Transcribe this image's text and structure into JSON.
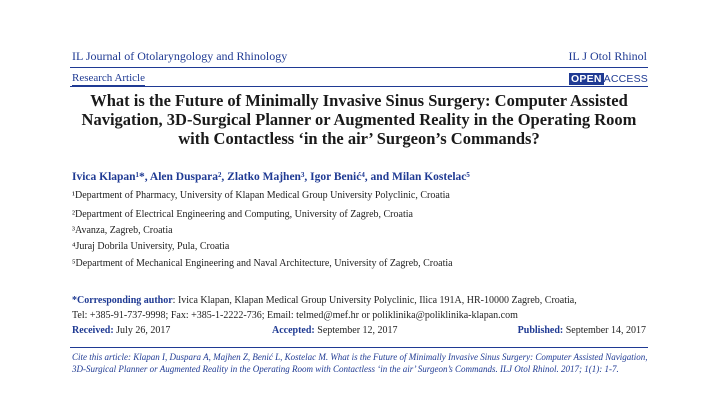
{
  "header": {
    "journal": "IL Journal of Otolaryngology and Rhinology",
    "abbreviation": "IL J Otol Rhinol",
    "research_type": "Research Article",
    "open": "OPEN",
    "access": "ACCESS"
  },
  "title": "What is the Future of Minimally Invasive Sinus Surgery: Computer Assisted Navigation, 3D-Surgical Planner or Augmented Reality in the Operating Room with Contactless ‘in the air’ Surgeon’s Commands?",
  "authors": "Ivica Klapan¹*, Alen Duspara², Zlatko Majhen³, Igor Benić⁴, and Milan Kostelac⁵",
  "affiliations": [
    "¹Department of Pharmacy, University of  Klapan Medical Group University Polyclinic, Croatia",
    "²Department of Electrical Engineering and Computing, University of Zagreb, Croatia",
    "³Avanza, Zagreb, Croatia",
    "⁴Juraj Dobrila University, Pula, Croatia",
    "⁵Department of Mechanical Engineering and Naval Architecture, University of Zagreb, Croatia"
  ],
  "corresponding": {
    "label": "*Corresponding author",
    "text": ": Ivica Klapan, Klapan Medical Group University Polyclinic, Ilica 191A, HR-10000 Zagreb, Croatia,",
    "contact": "Tel: +385-91-737-9998; Fax: +385-1-2222-736; Email: telmed@mef.hr or poliklinika@poliklinika-klapan.com"
  },
  "dates": {
    "received_label": "Received:",
    "received": " July 26, 2017",
    "accepted_label": "Accepted:",
    "accepted": " September 12, 2017",
    "published_label": "Published:",
    "published": " September 14, 2017"
  },
  "citation": "Cite this article: Klapan I, Duspara A, Majhen Z, Benić L, Kostelac M. What is the Future of Minimally Invasive Sinus Surgery: Computer Assisted Navigation, 3D-Surgical Planner or Augmented Reality in the Operating Room with Contactless ‘in the air’ Surgeon’s Commands. ILJ Otol Rhinol. 2017; 1(1): 1-7."
}
